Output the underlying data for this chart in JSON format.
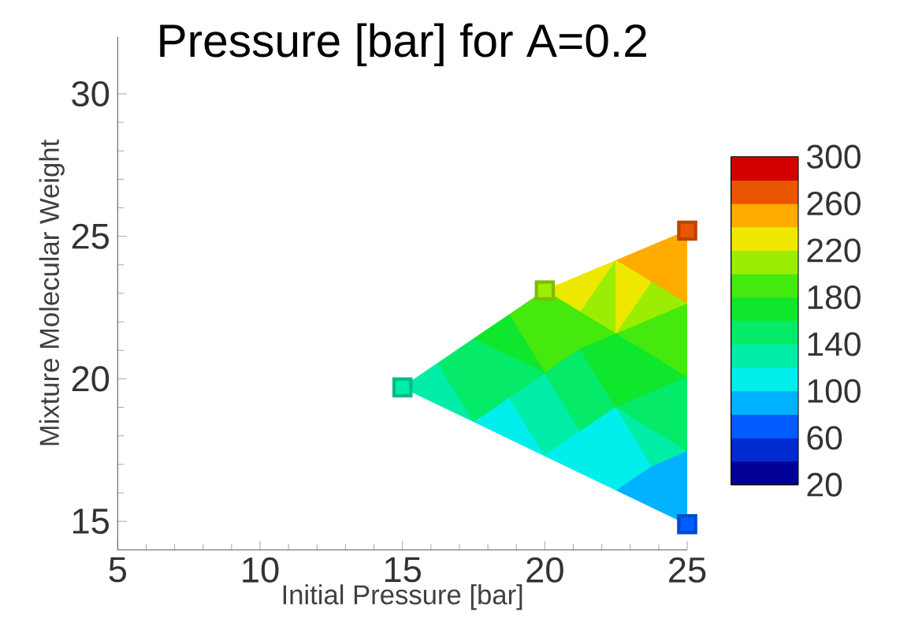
{
  "chart_data": {
    "type": "scatter",
    "title": "Pressure [bar] for A=0.2",
    "xlabel": "Initial Pressure [bar]",
    "ylabel": "Mixture Molecular Weight",
    "x": [
      15,
      20,
      25,
      25
    ],
    "values": [
      19.7,
      23.1,
      25.2,
      14.9
    ],
    "cvalues": [
      130,
      215,
      270,
      70
    ],
    "marker": "square",
    "xlim": [
      5,
      25
    ],
    "ylim": [
      14,
      32
    ],
    "xticks": [
      5,
      10,
      15,
      20,
      25
    ],
    "yticks": [
      15,
      20,
      25,
      30
    ],
    "clim": [
      20,
      300
    ],
    "cticks": [
      20,
      60,
      100,
      140,
      180,
      220,
      260,
      300
    ]
  }
}
